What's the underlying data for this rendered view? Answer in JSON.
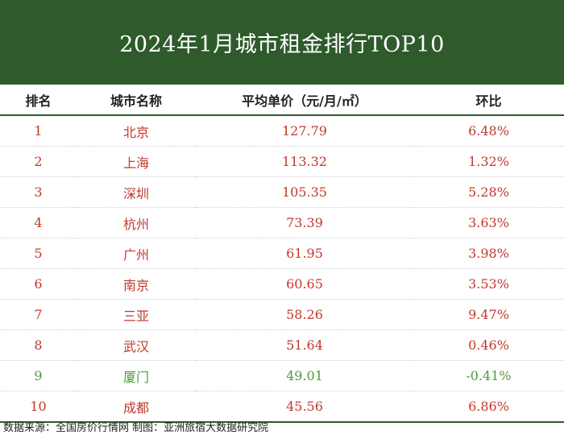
{
  "title": "2024年1月城市租金排行TOP10",
  "colors": {
    "header_bg": "#2e5a2c",
    "row_text": "#c0392b",
    "highlight_text": "#4e9a3a"
  },
  "table": {
    "headers": [
      "排名",
      "城市名称",
      "平均单价（元/月/㎡）",
      "环比"
    ],
    "rows": [
      {
        "rank": "1",
        "city": "北京",
        "price": "127.79",
        "change": "6.48%",
        "highlight": false
      },
      {
        "rank": "2",
        "city": "上海",
        "price": "113.32",
        "change": "1.32%",
        "highlight": false
      },
      {
        "rank": "3",
        "city": "深圳",
        "price": "105.35",
        "change": "5.28%",
        "highlight": false
      },
      {
        "rank": "4",
        "city": "杭州",
        "price": "73.39",
        "change": "3.63%",
        "highlight": false
      },
      {
        "rank": "5",
        "city": "广州",
        "price": "61.95",
        "change": "3.98%",
        "highlight": false
      },
      {
        "rank": "6",
        "city": "南京",
        "price": "60.65",
        "change": "3.53%",
        "highlight": false
      },
      {
        "rank": "7",
        "city": "三亚",
        "price": "58.26",
        "change": "9.47%",
        "highlight": false
      },
      {
        "rank": "8",
        "city": "武汉",
        "price": "51.64",
        "change": "0.46%",
        "highlight": false
      },
      {
        "rank": "9",
        "city": "厦门",
        "price": "49.01",
        "change": "-0.41%",
        "highlight": true
      },
      {
        "rank": "10",
        "city": "成都",
        "price": "45.56",
        "change": "6.86%",
        "highlight": false
      }
    ]
  },
  "footer": "数据来源：全国房价行情网 制图：亚洲旅宿大数据研究院"
}
